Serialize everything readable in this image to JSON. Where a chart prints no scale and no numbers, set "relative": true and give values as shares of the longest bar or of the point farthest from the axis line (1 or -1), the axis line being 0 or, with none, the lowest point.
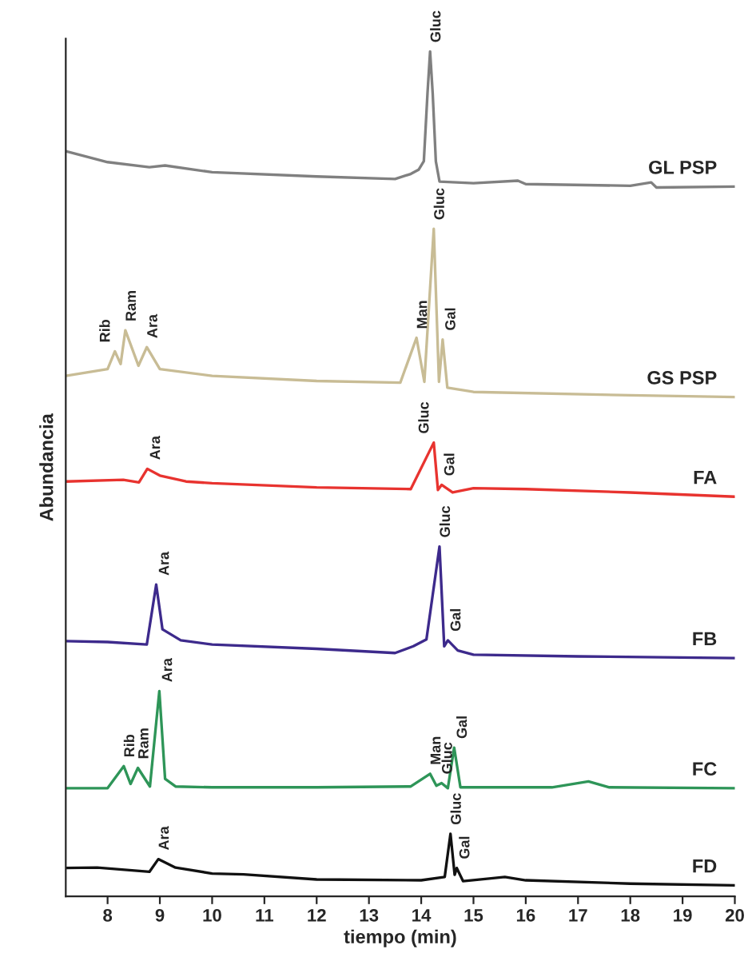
{
  "chart_data": {
    "type": "line",
    "relative": true,
    "xlabel": "tiempo (min)",
    "ylabel": "Abundancia",
    "xlim": [
      7.2,
      20
    ],
    "xticks": [
      8,
      9,
      10,
      11,
      12,
      13,
      14,
      15,
      16,
      17,
      18,
      19,
      20
    ],
    "grid": false,
    "legend": false,
    "marker": "none",
    "line_style": "solid",
    "series": [
      {
        "name": "GL PSP",
        "color": "#808080",
        "x": [
          7.2,
          8,
          8.8,
          9.1,
          10,
          12,
          13.5,
          13.8,
          13.95,
          14.05,
          14.12,
          14.17,
          14.22,
          14.28,
          14.35,
          15,
          15.85,
          16,
          18,
          18.4,
          18.5,
          20
        ],
        "values": [
          0.882,
          0.869,
          0.863,
          0.865,
          0.857,
          0.852,
          0.849,
          0.855,
          0.86,
          0.87,
          0.95,
          1.0,
          0.95,
          0.87,
          0.846,
          0.844,
          0.847,
          0.843,
          0.841,
          0.845,
          0.839,
          0.84
        ]
      },
      {
        "name": "GS PSP",
        "color": "#c8bc95",
        "x": [
          7.2,
          8,
          8.14,
          8.25,
          8.34,
          8.59,
          8.75,
          9.0,
          10,
          12,
          13.6,
          13.91,
          14.06,
          14.24,
          14.34,
          14.41,
          14.5,
          15,
          18,
          20
        ],
        "values": [
          0.616,
          0.624,
          0.645,
          0.63,
          0.67,
          0.628,
          0.65,
          0.624,
          0.616,
          0.61,
          0.608,
          0.661,
          0.609,
          0.79,
          0.609,
          0.659,
          0.602,
          0.597,
          0.593,
          0.591
        ]
      },
      {
        "name": "FA",
        "color": "#e8332f",
        "x": [
          7.2,
          8.3,
          8.6,
          8.76,
          9.0,
          9.5,
          10,
          12,
          13.8,
          14.24,
          14.32,
          14.39,
          14.6,
          15,
          16,
          18,
          20
        ],
        "values": [
          0.491,
          0.493,
          0.49,
          0.506,
          0.498,
          0.491,
          0.489,
          0.484,
          0.482,
          0.537,
          0.481,
          0.487,
          0.478,
          0.483,
          0.482,
          0.478,
          0.473
        ]
      },
      {
        "name": "FB",
        "color": "#3d2a8c",
        "x": [
          7.2,
          8,
          8.75,
          8.93,
          9.05,
          9.4,
          10,
          12,
          13.5,
          13.85,
          14.1,
          14.35,
          14.44,
          14.51,
          14.7,
          15,
          17,
          20
        ],
        "values": [
          0.302,
          0.301,
          0.298,
          0.369,
          0.316,
          0.303,
          0.298,
          0.293,
          0.288,
          0.296,
          0.304,
          0.414,
          0.296,
          0.303,
          0.291,
          0.286,
          0.284,
          0.282
        ]
      },
      {
        "name": "FC",
        "color": "#2e9558",
        "x": [
          7.2,
          8,
          8.31,
          8.44,
          8.58,
          8.81,
          8.99,
          9.1,
          9.3,
          10,
          12,
          13.8,
          14.17,
          14.29,
          14.39,
          14.51,
          14.63,
          14.75,
          16.5,
          17.2,
          17.6,
          20
        ],
        "values": [
          0.128,
          0.128,
          0.154,
          0.133,
          0.152,
          0.13,
          0.243,
          0.139,
          0.13,
          0.129,
          0.129,
          0.13,
          0.145,
          0.131,
          0.134,
          0.128,
          0.176,
          0.129,
          0.129,
          0.136,
          0.129,
          0.128
        ]
      },
      {
        "name": "FD",
        "color": "#111111",
        "x": [
          7.2,
          7.8,
          8.8,
          8.97,
          9.3,
          10,
          10.6,
          12,
          14,
          14.45,
          14.56,
          14.64,
          14.68,
          14.8,
          15.3,
          15.6,
          16,
          18,
          20
        ],
        "values": [
          0.0335,
          0.034,
          0.029,
          0.044,
          0.034,
          0.027,
          0.026,
          0.02,
          0.019,
          0.023,
          0.074,
          0.0255,
          0.0335,
          0.018,
          0.021,
          0.023,
          0.019,
          0.015,
          0.013
        ]
      }
    ],
    "annotations": [
      {
        "text": "Gluc",
        "x": 14.17,
        "y": 1.0
      },
      {
        "text": "Rib",
        "x": 8.14,
        "y": 0.645
      },
      {
        "text": "Ram",
        "x": 8.34,
        "y": 0.67
      },
      {
        "text": "Ara",
        "x": 8.75,
        "y": 0.65
      },
      {
        "text": "Man",
        "x": 13.91,
        "y": 0.661
      },
      {
        "text": "Gluc",
        "x": 14.24,
        "y": 0.79
      },
      {
        "text": "Gal",
        "x": 14.41,
        "y": 0.659
      },
      {
        "text": "Ara",
        "x": 8.76,
        "y": 0.506
      },
      {
        "text": "Gluc",
        "x": 14.24,
        "y": 0.537
      },
      {
        "text": "Gal",
        "x": 14.39,
        "y": 0.487
      },
      {
        "text": "Ara",
        "x": 8.93,
        "y": 0.369
      },
      {
        "text": "Gluc",
        "x": 14.35,
        "y": 0.414
      },
      {
        "text": "Gal",
        "x": 14.51,
        "y": 0.303
      },
      {
        "text": "Rib",
        "x": 8.31,
        "y": 0.154
      },
      {
        "text": "Ram",
        "x": 8.58,
        "y": 0.152
      },
      {
        "text": "Ara",
        "x": 8.99,
        "y": 0.243
      },
      {
        "text": "Man",
        "x": 14.17,
        "y": 0.145
      },
      {
        "text": "Gluc",
        "x": 14.39,
        "y": 0.134
      },
      {
        "text": "Gal",
        "x": 14.63,
        "y": 0.176
      },
      {
        "text": "Ara",
        "x": 8.97,
        "y": 0.044
      },
      {
        "text": "Gluc",
        "x": 14.56,
        "y": 0.074
      },
      {
        "text": "Gal",
        "x": 14.68,
        "y": 0.0335
      }
    ]
  }
}
